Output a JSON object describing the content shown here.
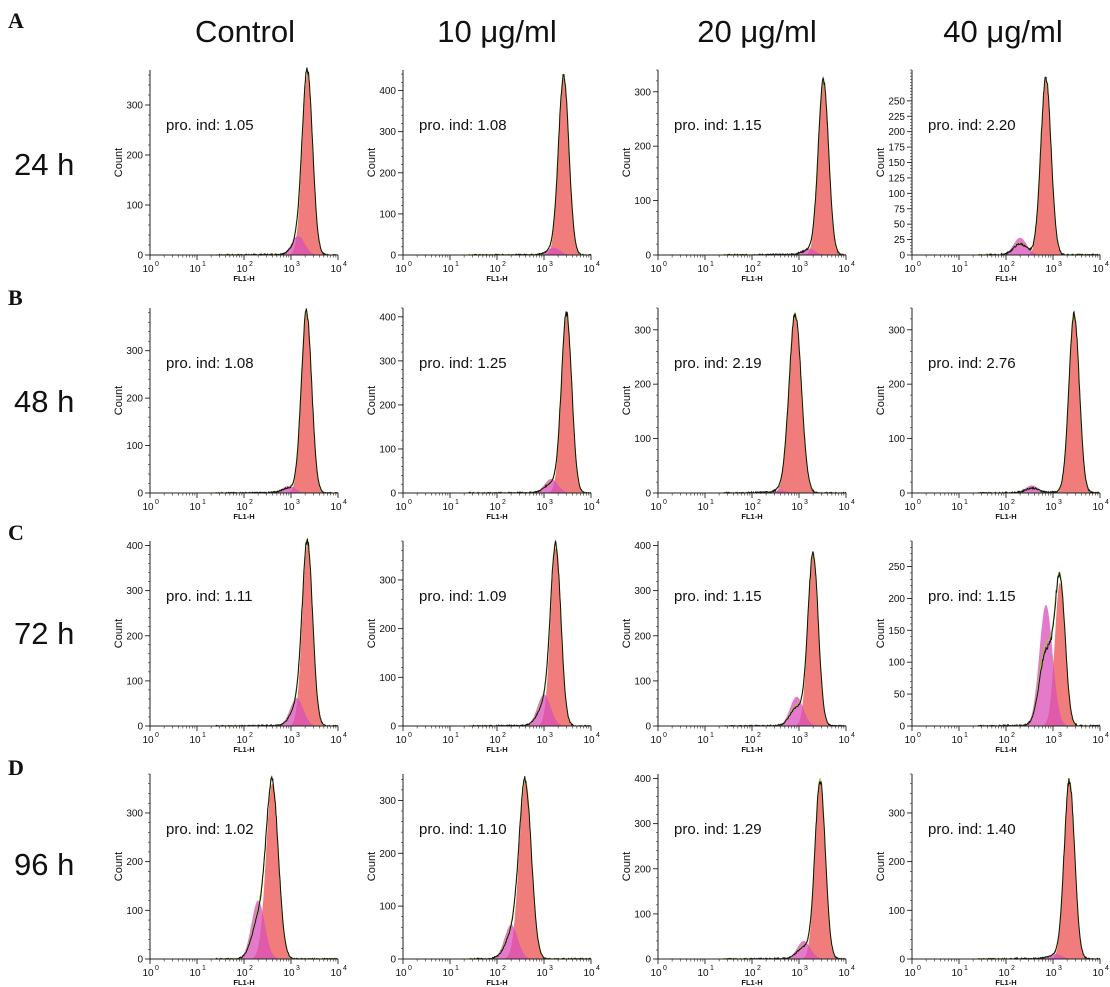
{
  "figure": {
    "column_headers": [
      "Control",
      "10 μg/ml",
      "20 μg/ml",
      "40 μg/ml"
    ],
    "rows": [
      {
        "letter": "A",
        "label": "24 h"
      },
      {
        "letter": "B",
        "label": "48 h"
      },
      {
        "letter": "C",
        "label": "72 h"
      },
      {
        "letter": "D",
        "label": "96 h"
      }
    ],
    "colors": {
      "main_peak_fill": "#f07c7c",
      "secondary_peak_fill": "#d94fb8",
      "outline": "#111111",
      "fit_line": "#9acd32",
      "axis": "#222222"
    }
  },
  "chart_data": [
    {
      "type": "area",
      "row": "A",
      "column": "Control",
      "ylabel": "Count",
      "xlabel": "FL1-H",
      "xscale": "log",
      "xlim": [
        1,
        10000
      ],
      "ylim": [
        0,
        370
      ],
      "yticks": [
        0,
        100,
        200,
        300
      ],
      "annotation": "pro. ind: 1.05",
      "main_peak_log10": 3.35,
      "main_peak_count": 360,
      "secondary_peak_log10": 3.15,
      "secondary_peak_count": 38
    },
    {
      "type": "area",
      "row": "A",
      "column": "10 μg/ml",
      "ylabel": "Count",
      "xlabel": "FL1-H",
      "xscale": "log",
      "xlim": [
        1,
        10000
      ],
      "ylim": [
        0,
        450
      ],
      "yticks": [
        0,
        100,
        200,
        300,
        400
      ],
      "annotation": "pro. ind: 1.08",
      "main_peak_log10": 3.42,
      "main_peak_count": 430,
      "secondary_peak_log10": 3.2,
      "secondary_peak_count": 18
    },
    {
      "type": "area",
      "row": "A",
      "column": "20 μg/ml",
      "ylabel": "Count",
      "xlabel": "FL1-H",
      "xscale": "log",
      "xlim": [
        1,
        10000
      ],
      "ylim": [
        0,
        340
      ],
      "yticks": [
        0,
        100,
        200,
        300
      ],
      "annotation": "pro. ind: 1.15",
      "main_peak_log10": 3.52,
      "main_peak_count": 320,
      "secondary_peak_log10": 3.2,
      "secondary_peak_count": 12
    },
    {
      "type": "area",
      "row": "A",
      "column": "40 μg/ml",
      "ylabel": "Count",
      "xlabel": "FL1-H",
      "xscale": "log",
      "xlim": [
        1,
        10000
      ],
      "ylim": [
        0,
        300
      ],
      "yticks": [
        0,
        25,
        50,
        75,
        100,
        125,
        150,
        175,
        200,
        225,
        250
      ],
      "annotation": "pro. ind: 2.20",
      "main_peak_log10": 2.85,
      "main_peak_count": 285,
      "secondary_peak_log10": 2.3,
      "secondary_peak_count": 28
    },
    {
      "type": "area",
      "row": "B",
      "column": "Control",
      "ylabel": "Count",
      "xlabel": "FL1-H",
      "xscale": "log",
      "xlim": [
        1,
        10000
      ],
      "ylim": [
        0,
        390
      ],
      "yticks": [
        0,
        100,
        200,
        300
      ],
      "annotation": "pro. ind: 1.08",
      "main_peak_log10": 3.33,
      "main_peak_count": 380,
      "secondary_peak_log10": 2.95,
      "secondary_peak_count": 15
    },
    {
      "type": "area",
      "row": "B",
      "column": "10 μg/ml",
      "ylabel": "Count",
      "xlabel": "FL1-H",
      "xscale": "log",
      "xlim": [
        1,
        10000
      ],
      "ylim": [
        0,
        420
      ],
      "yticks": [
        0,
        100,
        200,
        300,
        400
      ],
      "annotation": "pro. ind: 1.25",
      "main_peak_log10": 3.48,
      "main_peak_count": 405,
      "secondary_peak_log10": 3.15,
      "secondary_peak_count": 32
    },
    {
      "type": "area",
      "row": "B",
      "column": "20 μg/ml",
      "ylabel": "Count",
      "xlabel": "FL1-H",
      "xscale": "log",
      "xlim": [
        1,
        10000
      ],
      "ylim": [
        0,
        340
      ],
      "yticks": [
        0,
        100,
        200,
        300
      ],
      "annotation": "pro. ind: 2.19",
      "main_peak_log10": 2.92,
      "main_peak_count": 328,
      "secondary_peak_log10": 2.6,
      "secondary_peak_count": 5
    },
    {
      "type": "area",
      "row": "B",
      "column": "40 μg/ml",
      "ylabel": "Count",
      "xlabel": "FL1-H",
      "xscale": "log",
      "xlim": [
        1,
        10000
      ],
      "ylim": [
        0,
        340
      ],
      "yticks": [
        0,
        100,
        200,
        300
      ],
      "annotation": "pro. ind: 2.76",
      "main_peak_log10": 3.45,
      "main_peak_count": 328,
      "secondary_peak_log10": 2.55,
      "secondary_peak_count": 14
    },
    {
      "type": "area",
      "row": "C",
      "column": "Control",
      "ylabel": "Count",
      "xlabel": "FL1-H",
      "xscale": "log",
      "xlim": [
        1,
        10000
      ],
      "ylim": [
        0,
        410
      ],
      "yticks": [
        0,
        100,
        200,
        300,
        400
      ],
      "annotation": "pro. ind: 1.11",
      "main_peak_log10": 3.35,
      "main_peak_count": 400,
      "secondary_peak_log10": 3.12,
      "secondary_peak_count": 62
    },
    {
      "type": "area",
      "row": "C",
      "column": "10 μg/ml",
      "ylabel": "Count",
      "xlabel": "FL1-H",
      "xscale": "log",
      "xlim": [
        1,
        10000
      ],
      "ylim": [
        0,
        380
      ],
      "yticks": [
        0,
        100,
        200,
        300
      ],
      "annotation": "pro. ind: 1.09",
      "main_peak_log10": 3.25,
      "main_peak_count": 365,
      "secondary_peak_log10": 3.0,
      "secondary_peak_count": 65
    },
    {
      "type": "area",
      "row": "C",
      "column": "20 μg/ml",
      "ylabel": "Count",
      "xlabel": "FL1-H",
      "xscale": "log",
      "xlim": [
        1,
        10000
      ],
      "ylim": [
        0,
        410
      ],
      "yticks": [
        0,
        100,
        200,
        300,
        400
      ],
      "annotation": "pro. ind: 1.15",
      "main_peak_log10": 3.3,
      "main_peak_count": 380,
      "secondary_peak_log10": 2.95,
      "secondary_peak_count": 65
    },
    {
      "type": "area",
      "row": "C",
      "column": "40 μg/ml",
      "ylabel": "Count",
      "xlabel": "FL1-H",
      "xscale": "log",
      "xlim": [
        1,
        10000
      ],
      "ylim": [
        0,
        290
      ],
      "yticks": [
        0,
        50,
        100,
        150,
        200,
        250
      ],
      "annotation": "pro. ind: 1.15",
      "main_peak_log10": 3.15,
      "main_peak_count": 225,
      "secondary_peak_log10": 2.85,
      "secondary_peak_count": 190
    },
    {
      "type": "area",
      "row": "D",
      "column": "Control",
      "ylabel": "Count",
      "xlabel": "FL1-H",
      "xscale": "log",
      "xlim": [
        1,
        10000
      ],
      "ylim": [
        0,
        380
      ],
      "yticks": [
        0,
        100,
        200,
        300
      ],
      "annotation": "pro. ind: 1.02",
      "main_peak_log10": 2.6,
      "main_peak_count": 360,
      "secondary_peak_log10": 2.3,
      "secondary_peak_count": 120
    },
    {
      "type": "area",
      "row": "D",
      "column": "10 μg/ml",
      "ylabel": "Count",
      "xlabel": "FL1-H",
      "xscale": "log",
      "xlim": [
        1,
        10000
      ],
      "ylim": [
        0,
        350
      ],
      "yticks": [
        0,
        100,
        200,
        300
      ],
      "annotation": "pro. ind: 1.10",
      "main_peak_log10": 2.6,
      "main_peak_count": 335,
      "secondary_peak_log10": 2.3,
      "secondary_peak_count": 65
    },
    {
      "type": "area",
      "row": "D",
      "column": "20 μg/ml",
      "ylabel": "Count",
      "xlabel": "FL1-H",
      "xscale": "log",
      "xlim": [
        1,
        10000
      ],
      "ylim": [
        0,
        410
      ],
      "yticks": [
        0,
        100,
        200,
        300,
        400
      ],
      "annotation": "pro. ind: 1.29",
      "main_peak_log10": 3.45,
      "main_peak_count": 395,
      "secondary_peak_log10": 3.1,
      "secondary_peak_count": 40
    },
    {
      "type": "area",
      "row": "D",
      "column": "40 μg/ml",
      "ylabel": "Count",
      "xlabel": "FL1-H",
      "xscale": "log",
      "xlim": [
        1,
        10000
      ],
      "ylim": [
        0,
        380
      ],
      "yticks": [
        0,
        100,
        200,
        300
      ],
      "annotation": "pro. ind: 1.40",
      "main_peak_log10": 3.35,
      "main_peak_count": 365,
      "secondary_peak_log10": 3.05,
      "secondary_peak_count": 10
    }
  ]
}
